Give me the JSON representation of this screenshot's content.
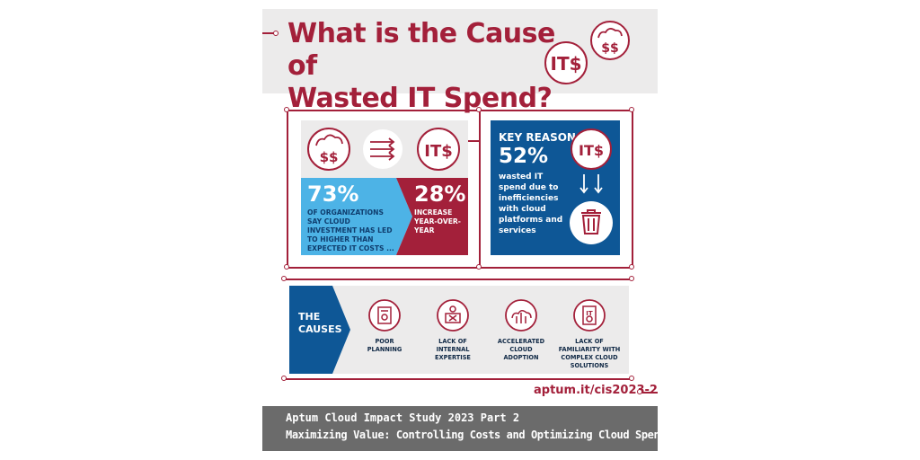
{
  "title": {
    "line1": "What is the Cause of",
    "line2": "Wasted IT Spend?"
  },
  "colors": {
    "red": "#a3203a",
    "blue": "#0e5796",
    "light_blue": "#4db3e6",
    "gray_panel": "#ecebeb",
    "footer_gray": "#6b6b6b"
  },
  "icons": [
    "cloud-dollar-icon",
    "it-dollar-icon",
    "arrows-icon",
    "trash-icon"
  ],
  "stats": {
    "left": {
      "value": "73%",
      "text": "OF ORGANIZATIONS SAY CLOUD INVESTMENT HAS LED TO HIGHER THAN EXPECTED IT COSTS ..."
    },
    "right": {
      "value": "28%",
      "text": "INCREASE YEAR-OVER-YEAR"
    }
  },
  "key_reason": {
    "title": "KEY REASON",
    "value": "52%",
    "text": "wasted IT spend due to inefficiencies with cloud platforms and services"
  },
  "it_text": "IT$",
  "causes": {
    "label_line1": "THE",
    "label_line2": "CAUSES",
    "items": [
      {
        "label": "POOR PLANNING"
      },
      {
        "label": "LACK OF INTERNAL EXPERTISE"
      },
      {
        "label": "ACCELERATED CLOUD ADOPTION"
      },
      {
        "label": "LACK OF FAMILIARITY WITH COMPLEX CLOUD SOLUTIONS"
      }
    ]
  },
  "link": "aptum.it/cis2023-2",
  "footer": {
    "line1": "Aptum Cloud Impact Study 2023 Part 2",
    "line2": "Maximizing Value: Controlling Costs and Optimizing Cloud Spend"
  }
}
